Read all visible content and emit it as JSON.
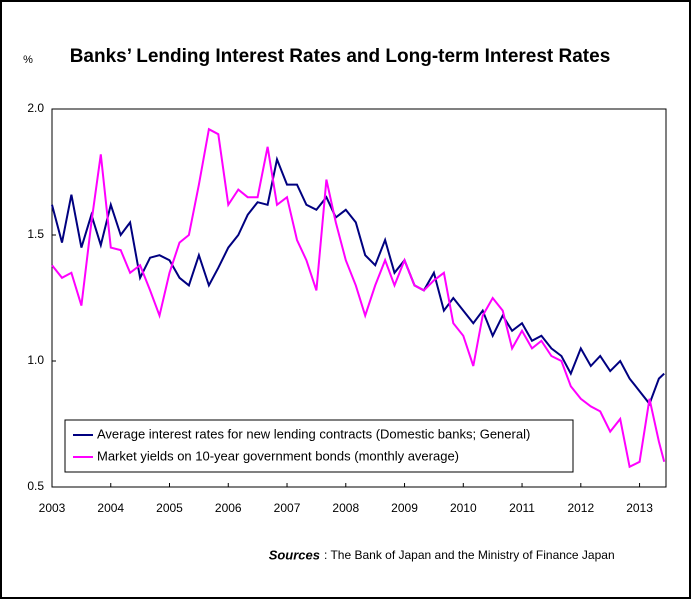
{
  "chart_data": {
    "type": "line",
    "title": "Banks’ Lending Interest Rates and Long-term Interest Rates",
    "y_unit": "%",
    "sources_label": "Sources",
    "sources_text": ": The Bank of Japan and the Ministry of Finance Japan",
    "x": [
      2003,
      2003.17,
      2003.33,
      2003.5,
      2003.67,
      2003.83,
      2004,
      2004.17,
      2004.33,
      2004.5,
      2004.67,
      2004.83,
      2005,
      2005.17,
      2005.33,
      2005.5,
      2005.67,
      2005.83,
      2006,
      2006.17,
      2006.33,
      2006.5,
      2006.67,
      2006.83,
      2007,
      2007.17,
      2007.33,
      2007.5,
      2007.67,
      2007.83,
      2008,
      2008.17,
      2008.33,
      2008.5,
      2008.67,
      2008.83,
      2009,
      2009.17,
      2009.33,
      2009.5,
      2009.67,
      2009.83,
      2010,
      2010.17,
      2010.33,
      2010.5,
      2010.67,
      2010.83,
      2011,
      2011.17,
      2011.33,
      2011.5,
      2011.67,
      2011.83,
      2012,
      2012.17,
      2012.33,
      2012.5,
      2012.67,
      2012.83,
      2013,
      2013.17,
      2013.33,
      2013.42
    ],
    "xlim": [
      2003,
      2013.45
    ],
    "xticks": [
      2003,
      2004,
      2005,
      2006,
      2007,
      2008,
      2009,
      2010,
      2011,
      2012,
      2013
    ],
    "ylim": [
      0.5,
      2.0
    ],
    "yticks": [
      {
        "value": 0.5,
        "label": "0.5"
      },
      {
        "value": 1.0,
        "label": "1.0"
      },
      {
        "value": 1.5,
        "label": "1.5"
      },
      {
        "value": 2.0,
        "label": "2.0"
      }
    ],
    "series": [
      {
        "name": "Average interest rates for new lending contracts (Domestic banks; General)",
        "color": "#000080",
        "values": [
          1.62,
          1.47,
          1.66,
          1.45,
          1.58,
          1.46,
          1.62,
          1.5,
          1.55,
          1.33,
          1.41,
          1.42,
          1.4,
          1.33,
          1.3,
          1.42,
          1.3,
          1.37,
          1.45,
          1.5,
          1.58,
          1.63,
          1.62,
          1.8,
          1.7,
          1.7,
          1.62,
          1.6,
          1.65,
          1.57,
          1.6,
          1.55,
          1.42,
          1.38,
          1.48,
          1.35,
          1.4,
          1.3,
          1.28,
          1.35,
          1.2,
          1.25,
          1.2,
          1.15,
          1.2,
          1.1,
          1.18,
          1.12,
          1.15,
          1.08,
          1.1,
          1.05,
          1.02,
          0.95,
          1.05,
          0.98,
          1.02,
          0.96,
          1.0,
          0.93,
          0.88,
          0.83,
          0.93,
          0.95
        ]
      },
      {
        "name": "Market yields on 10-year government bonds (monthly average)",
        "color": "#ff00ff",
        "values": [
          1.38,
          1.33,
          1.35,
          1.22,
          1.55,
          1.82,
          1.45,
          1.44,
          1.35,
          1.38,
          1.28,
          1.18,
          1.35,
          1.47,
          1.5,
          1.7,
          1.92,
          1.9,
          1.62,
          1.68,
          1.65,
          1.65,
          1.85,
          1.62,
          1.65,
          1.48,
          1.4,
          1.28,
          1.72,
          1.55,
          1.4,
          1.3,
          1.18,
          1.3,
          1.4,
          1.3,
          1.4,
          1.3,
          1.28,
          1.32,
          1.35,
          1.15,
          1.1,
          0.98,
          1.18,
          1.25,
          1.2,
          1.05,
          1.12,
          1.05,
          1.08,
          1.02,
          1.0,
          0.9,
          0.85,
          0.82,
          0.8,
          0.72,
          0.77,
          0.58,
          0.6,
          0.85,
          0.68,
          0.6
        ]
      }
    ],
    "legend": "lower-left",
    "grid": false
  }
}
